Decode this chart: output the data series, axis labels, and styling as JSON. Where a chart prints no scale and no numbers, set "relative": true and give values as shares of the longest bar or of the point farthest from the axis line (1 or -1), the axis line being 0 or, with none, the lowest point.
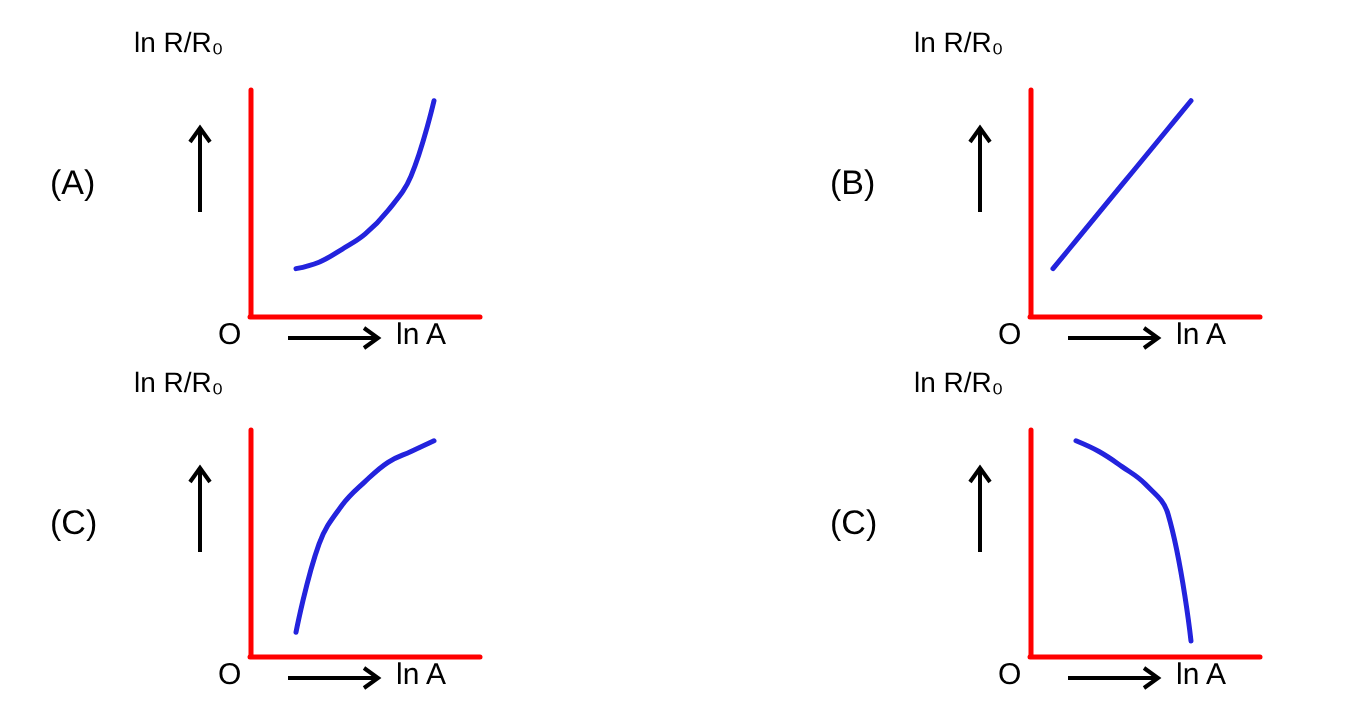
{
  "chart_data": [
    {
      "type": "line",
      "title": "(A)",
      "xlabel": "ln A",
      "ylabel": "ln R/R₀",
      "annotations": [
        "O"
      ],
      "relative": true,
      "categories": [
        null,
        null,
        null,
        null,
        null,
        null,
        null,
        null,
        null,
        null,
        null
      ],
      "color": "#2323dd",
      "values": [
        null,
        null,
        0.22,
        0.25,
        0.31,
        0.38,
        0.49,
        0.65,
        1,
        null,
        null
      ]
    },
    {
      "type": "line",
      "title": "(B)",
      "xlabel": "ln A",
      "ylabel": "ln R/R₀",
      "annotations": [
        "O"
      ],
      "relative": true,
      "categories": [
        null,
        null,
        null,
        null,
        null,
        null,
        null,
        null,
        null,
        null,
        null
      ],
      "color": "#2323dd",
      "values": [
        null,
        0.22,
        0.35,
        0.48,
        0.61,
        0.74,
        0.87,
        1,
        null,
        null,
        null
      ]
    },
    {
      "type": "line",
      "title": "(C)",
      "xlabel": "ln A",
      "ylabel": "ln R/R₀",
      "annotations": [
        "O"
      ],
      "relative": true,
      "categories": [
        null,
        null,
        null,
        null,
        null,
        null,
        null,
        null,
        null,
        null,
        null
      ],
      "color": "#2323dd",
      "values": [
        null,
        null,
        0.11,
        0.52,
        0.7,
        0.81,
        0.9,
        0.95,
        1,
        null,
        null
      ]
    },
    {
      "type": "line",
      "title": "(C)",
      "xlabel": "ln A",
      "ylabel": "ln R/R₀",
      "annotations": [
        "O"
      ],
      "relative": true,
      "categories": [
        null,
        null,
        null,
        null,
        null,
        null,
        null,
        null,
        null,
        null,
        null
      ],
      "color": "#2323dd",
      "values": [
        null,
        null,
        1,
        0.95,
        0.88,
        0.8,
        0.66,
        0.07,
        null,
        null,
        null
      ]
    }
  ]
}
